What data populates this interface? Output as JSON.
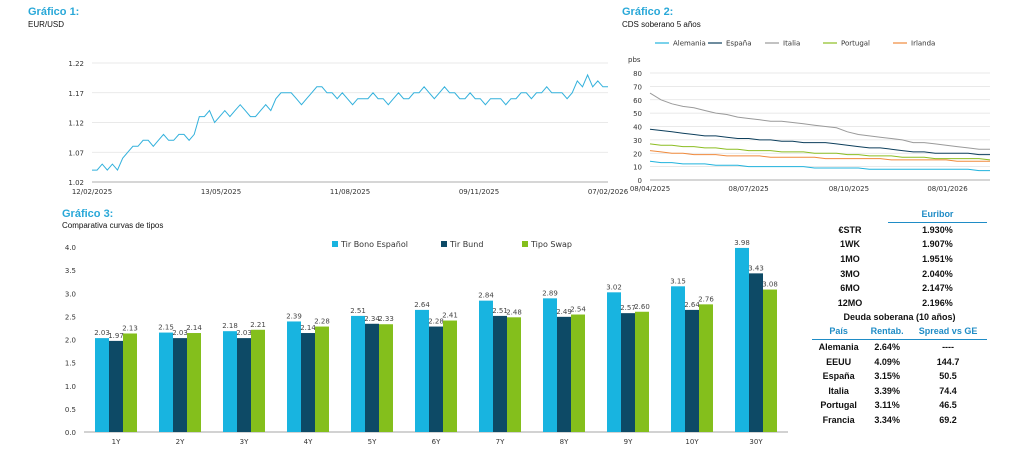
{
  "chart_data": [
    {
      "type": "line",
      "title": "Gráfico 1:",
      "subtitle": "EUR/USD",
      "x_ticks": [
        "12/02/2025",
        "13/05/2025",
        "11/08/2025",
        "09/11/2025",
        "07/02/2026"
      ],
      "ylim": [
        1.02,
        1.22
      ],
      "y_ticks": [
        "1.02",
        "1.07",
        "1.12",
        "1.17",
        "1.22"
      ],
      "grid": true,
      "color": "#33b1dc",
      "series": [
        {
          "values": [
            1.04,
            1.04,
            1.05,
            1.04,
            1.05,
            1.04,
            1.06,
            1.07,
            1.08,
            1.08,
            1.09,
            1.09,
            1.08,
            1.09,
            1.1,
            1.09,
            1.09,
            1.1,
            1.1,
            1.09,
            1.1,
            1.13,
            1.13,
            1.14,
            1.12,
            1.13,
            1.14,
            1.13,
            1.14,
            1.15,
            1.14,
            1.13,
            1.13,
            1.14,
            1.15,
            1.14,
            1.16,
            1.17,
            1.17,
            1.17,
            1.16,
            1.15,
            1.16,
            1.17,
            1.18,
            1.18,
            1.17,
            1.17,
            1.16,
            1.17,
            1.16,
            1.15,
            1.16,
            1.16,
            1.16,
            1.17,
            1.16,
            1.16,
            1.15,
            1.16,
            1.17,
            1.16,
            1.16,
            1.17,
            1.17,
            1.18,
            1.17,
            1.16,
            1.17,
            1.18,
            1.17,
            1.17,
            1.16,
            1.16,
            1.17,
            1.16,
            1.16,
            1.15,
            1.16,
            1.16,
            1.16,
            1.15,
            1.16,
            1.16,
            1.17,
            1.17,
            1.16,
            1.17,
            1.17,
            1.18,
            1.17,
            1.17,
            1.17,
            1.16,
            1.17,
            1.19,
            1.18,
            1.2,
            1.18,
            1.19,
            1.18,
            1.18
          ]
        }
      ]
    },
    {
      "type": "line",
      "title": "Gráfico 2:",
      "subtitle": "CDS soberano 5 años",
      "ylabel": "pbs",
      "x_ticks": [
        "08/04/2025",
        "08/07/2025",
        "08/10/2025",
        "08/01/2026"
      ],
      "ylim": [
        0,
        80
      ],
      "y_ticks": [
        "0",
        "10",
        "20",
        "30",
        "40",
        "50",
        "60",
        "70",
        "80"
      ],
      "grid": true,
      "legend_position": "top",
      "series": [
        {
          "name": "Alemania",
          "color": "#21b3dd",
          "values": [
            14,
            13,
            13,
            12,
            12,
            12,
            11,
            11,
            11,
            10,
            10,
            10,
            10,
            10,
            10,
            9,
            9,
            9,
            9,
            9,
            8,
            8,
            8,
            8,
            8,
            8,
            8,
            8,
            8,
            8,
            7,
            7
          ]
        },
        {
          "name": "España",
          "color": "#0d3f5c",
          "values": [
            38,
            37,
            36,
            35,
            34,
            33,
            33,
            32,
            31,
            31,
            30,
            30,
            29,
            29,
            28,
            28,
            28,
            27,
            26,
            25,
            24,
            24,
            23,
            22,
            21,
            21,
            20,
            20,
            20,
            20,
            19,
            19
          ]
        },
        {
          "name": "Italia",
          "color": "#9a9a9a",
          "values": [
            65,
            60,
            57,
            55,
            54,
            52,
            50,
            49,
            47,
            46,
            45,
            44,
            44,
            43,
            42,
            41,
            40,
            39,
            36,
            34,
            33,
            32,
            31,
            30,
            28,
            28,
            27,
            26,
            25,
            24,
            23,
            23
          ]
        },
        {
          "name": "Portugal",
          "color": "#8cbd22",
          "values": [
            27,
            26,
            26,
            25,
            25,
            24,
            24,
            23,
            23,
            22,
            22,
            22,
            21,
            21,
            21,
            20,
            20,
            20,
            19,
            19,
            18,
            18,
            18,
            17,
            17,
            17,
            16,
            16,
            16,
            16,
            16,
            15
          ]
        },
        {
          "name": "Irlanda",
          "color": "#f08a3c",
          "values": [
            22,
            21,
            20,
            20,
            19,
            19,
            19,
            18,
            18,
            18,
            18,
            17,
            17,
            17,
            17,
            17,
            16,
            16,
            16,
            16,
            16,
            16,
            15,
            15,
            15,
            15,
            15,
            15,
            14,
            14,
            14,
            14
          ]
        }
      ]
    },
    {
      "type": "bar",
      "title": "Gráfico 3:",
      "subtitle": "Comparativa curvas de tipos",
      "categories": [
        "1Y",
        "2Y",
        "3Y",
        "4Y",
        "5Y",
        "6Y",
        "7Y",
        "8Y",
        "9Y",
        "10Y",
        "30Y"
      ],
      "ylim": [
        0,
        4.0
      ],
      "y_ticks": [
        "0.0",
        "0.5",
        "1.0",
        "1.5",
        "2.0",
        "2.5",
        "3.0",
        "3.5",
        "4.0"
      ],
      "legend_position": "top",
      "series": [
        {
          "name": "Tir Bono Español",
          "color": "#18b4e0",
          "values": [
            2.03,
            2.15,
            2.18,
            2.39,
            2.51,
            2.64,
            2.84,
            2.89,
            3.02,
            3.15,
            3.98
          ],
          "labels": [
            "2.03",
            "2.15",
            "2.18",
            "2.39",
            "2.51",
            "2.64",
            "2.84",
            "2.89",
            "3.02",
            "3.15",
            "3.98"
          ]
        },
        {
          "name": "Tir Bund",
          "color": "#0d4a66",
          "values": [
            1.97,
            2.03,
            2.03,
            2.14,
            2.34,
            2.28,
            2.51,
            2.49,
            2.57,
            2.64,
            3.43
          ],
          "labels": [
            "1.97",
            "2.03",
            "2.03",
            "2.14",
            "2.34",
            "2.28",
            "2.51",
            "2.49",
            "2.57",
            "2.64",
            "3.43"
          ]
        },
        {
          "name": "Tipo Swap",
          "color": "#84bf1c",
          "values": [
            2.13,
            2.14,
            2.21,
            2.28,
            2.33,
            2.41,
            2.48,
            2.54,
            2.6,
            2.76,
            3.08
          ],
          "labels": [
            "2.13",
            "2.14",
            "2.21",
            "2.28",
            "2.33",
            "2.41",
            "2.48",
            "2.54",
            "2.60",
            "2.76",
            "3.08"
          ]
        }
      ]
    }
  ],
  "euribor": {
    "header": "Euribor",
    "rows": [
      {
        "label": "€STR",
        "value": "1.930%"
      },
      {
        "label": "1WK",
        "value": "1.907%"
      },
      {
        "label": "1MO",
        "value": "1.951%"
      },
      {
        "label": "3MO",
        "value": "2.040%"
      },
      {
        "label": "6MO",
        "value": "2.147%"
      },
      {
        "label": "12MO",
        "value": "2.196%"
      }
    ]
  },
  "deuda": {
    "title": "Deuda soberana (10 años)",
    "columns": [
      "País",
      "Rentab.",
      "Spread vs GE"
    ],
    "rows": [
      {
        "pais": "Alemania",
        "rentab": "2.64%",
        "spread": "----"
      },
      {
        "pais": "EEUU",
        "rentab": "4.09%",
        "spread": "144.7"
      },
      {
        "pais": "España",
        "rentab": "3.15%",
        "spread": "50.5"
      },
      {
        "pais": "Italia",
        "rentab": "3.39%",
        "spread": "74.4"
      },
      {
        "pais": "Portugal",
        "rentab": "3.11%",
        "spread": "46.5"
      },
      {
        "pais": "Francia",
        "rentab": "3.34%",
        "spread": "69.2"
      }
    ]
  },
  "colors": {
    "accent": "#29a8d8",
    "rule": "#1f8cc6"
  }
}
